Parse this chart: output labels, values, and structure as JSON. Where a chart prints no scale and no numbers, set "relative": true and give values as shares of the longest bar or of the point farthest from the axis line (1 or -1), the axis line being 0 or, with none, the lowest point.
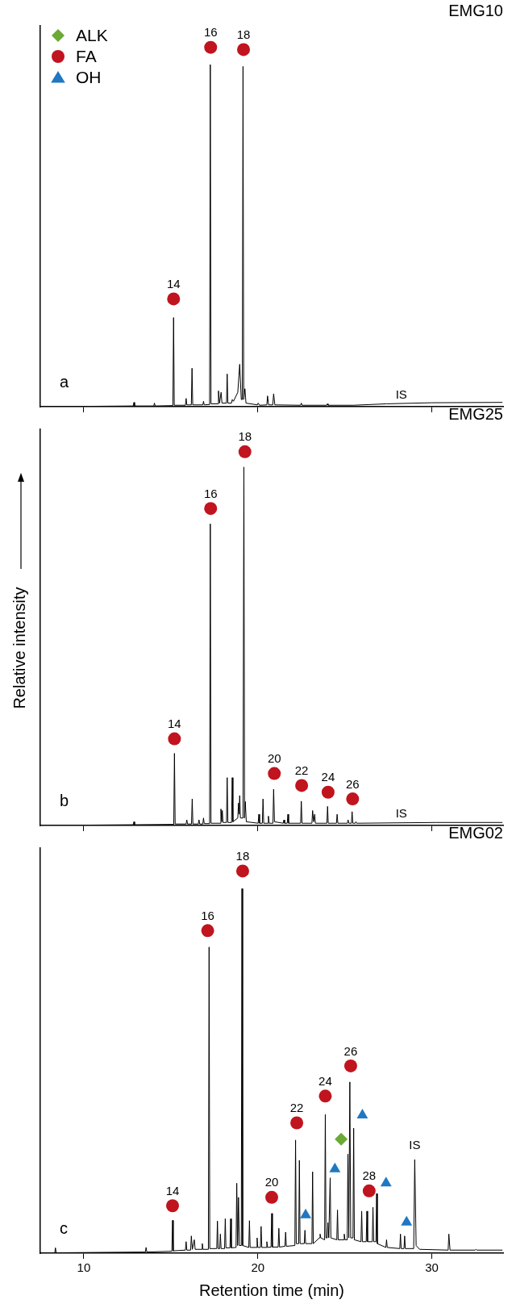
{
  "chart_data": [
    {
      "type": "line",
      "title": "EMG10",
      "relative": true,
      "xlim": [
        7.5,
        34.1
      ],
      "xticks": [
        10,
        20,
        30
      ],
      "tick_labels": false,
      "legend": "top left",
      "grid": false,
      "annotations": [
        "a",
        "IS",
        {
          "text": "14",
          "x": 15.16,
          "y": 0.3
        },
        {
          "text": "16",
          "x": 17.29,
          "y": 1
        },
        {
          "text": "18",
          "x": 19.18,
          "y": 0.994
        }
      ],
      "series": [
        {
          "color": "#000000",
          "marker": "none",
          "x": [
            7.5,
            12.84,
            12.88,
            12.92,
            14.02,
            14.06,
            14.1,
            15.12,
            15.16,
            15.2,
            15.84,
            15.88,
            15.92,
            16.18,
            16.22,
            16.26,
            16.84,
            16.88,
            16.92,
            17.23,
            17.27,
            17.31,
            17.7,
            17.74,
            17.8,
            17.89,
            17.94,
            18.2,
            18.24,
            18.28,
            18.49,
            18.53,
            18.6,
            18.85,
            18.96,
            19.05,
            19.11,
            19.15,
            19.19,
            19.26,
            19.32,
            19.98,
            20.02,
            20.1,
            20.52,
            20.56,
            20.62,
            20.86,
            20.91,
            20.98,
            22.46,
            22.5,
            22.54,
            23.96,
            24.0,
            24.04,
            25.5,
            27.4,
            30.0,
            34.06
          ],
          "values": [
            0,
            0.002,
            0.012,
            0.002,
            0.002,
            0.01,
            0.002,
            0.003,
            0.248,
            0.004,
            0.004,
            0.023,
            0.005,
            0.005,
            0.107,
            0.005,
            0.005,
            0.015,
            0.005,
            0.006,
            0.952,
            0.008,
            0.008,
            0.044,
            0.01,
            0.04,
            0.01,
            0.01,
            0.091,
            0.01,
            0.01,
            0.02,
            0.015,
            0.04,
            0.118,
            0.02,
            0.02,
            0.947,
            0.02,
            0.05,
            0.01,
            0.005,
            0.01,
            0.004,
            0.005,
            0.03,
            0.005,
            0.005,
            0.036,
            0.005,
            0.004,
            0.01,
            0.004,
            0.004,
            0.008,
            0.004,
            0.004,
            0.008,
            0.011,
            0.012
          ]
        },
        {
          "name": "ALK",
          "type": "scatter",
          "marker": "diamond",
          "color": "#6aaa35"
        },
        {
          "name": "FA",
          "type": "scatter",
          "marker": "circle",
          "color": "#c0141f",
          "x": [
            15.16,
            17.29,
            19.18
          ],
          "values": [
            0.3,
            1,
            0.994
          ]
        },
        {
          "name": "OH",
          "type": "scatter",
          "marker": "triangle",
          "color": "#1f78c1"
        }
      ]
    },
    {
      "type": "line",
      "title": "EMG25",
      "ylabel": "Relative intensity",
      "relative": true,
      "xlim": [
        7.5,
        34.1
      ],
      "xticks": [
        10,
        20,
        30
      ],
      "tick_labels": false,
      "grid": false,
      "annotations": [
        "b",
        "IS",
        {
          "text": "14",
          "x": 15.21,
          "y": 0.232
        },
        {
          "text": "16",
          "x": 17.29,
          "y": 0.848
        },
        {
          "text": "18",
          "x": 19.26,
          "y": 1
        },
        {
          "text": "20",
          "x": 20.95,
          "y": 0.139
        },
        {
          "text": "22",
          "x": 22.52,
          "y": 0.107
        },
        {
          "text": "24",
          "x": 24.04,
          "y": 0.089
        },
        {
          "text": "26",
          "x": 25.45,
          "y": 0.071
        }
      ],
      "series": [
        {
          "color": "#000000",
          "marker": "none",
          "x": [
            7.5,
            12.84,
            12.88,
            12.92,
            15.17,
            15.21,
            15.25,
            15.88,
            15.92,
            15.96,
            16.19,
            16.23,
            16.27,
            16.58,
            16.62,
            16.66,
            16.84,
            16.88,
            16.92,
            17.23,
            17.27,
            17.31,
            17.84,
            17.88,
            17.92,
            17.96,
            18.0,
            18.2,
            18.24,
            18.28,
            18.49,
            18.53,
            18.57,
            18.85,
            18.89,
            18.93,
            18.96,
            19.0,
            19.15,
            19.2,
            19.24,
            19.28,
            19.34,
            20.02,
            20.06,
            20.1,
            20.26,
            20.3,
            20.34,
            20.57,
            20.61,
            20.65,
            20.87,
            20.91,
            20.96,
            21.46,
            21.5,
            21.54,
            21.69,
            21.73,
            21.77,
            22.46,
            22.5,
            22.54,
            23.11,
            23.15,
            23.21,
            23.27,
            23.31,
            23.97,
            24.01,
            24.05,
            24.52,
            24.56,
            24.6,
            25.15,
            25.19,
            25.23,
            25.38,
            25.42,
            25.46,
            25.6,
            25.64,
            25.68,
            30.24,
            34.06
          ],
          "values": [
            0,
            0.002,
            0.01,
            0.002,
            0.003,
            0.193,
            0.004,
            0.004,
            0.015,
            0.004,
            0.004,
            0.071,
            0.004,
            0.004,
            0.015,
            0.004,
            0.004,
            0.02,
            0.005,
            0.005,
            0.807,
            0.006,
            0.006,
            0.044,
            0.01,
            0.04,
            0.008,
            0.008,
            0.128,
            0.008,
            0.008,
            0.128,
            0.01,
            0.02,
            0.06,
            0.03,
            0.08,
            0.02,
            0.02,
            0.959,
            0.02,
            0.064,
            0.01,
            0.006,
            0.03,
            0.006,
            0.006,
            0.071,
            0.006,
            0.006,
            0.025,
            0.006,
            0.006,
            0.097,
            0.01,
            0.006,
            0.015,
            0.006,
            0.006,
            0.03,
            0.006,
            0.006,
            0.065,
            0.006,
            0.006,
            0.04,
            0.01,
            0.03,
            0.006,
            0.006,
            0.051,
            0.006,
            0.006,
            0.03,
            0.006,
            0.006,
            0.015,
            0.006,
            0.006,
            0.037,
            0.006,
            0.006,
            0.01,
            0.006,
            0.008,
            0.008
          ]
        },
        {
          "type": "scatter",
          "marker": "circle",
          "color": "#c0141f",
          "x": [
            15.21,
            17.29,
            19.26,
            20.95,
            22.52,
            24.04,
            25.45
          ],
          "values": [
            0.232,
            0.848,
            1,
            0.139,
            0.107,
            0.089,
            0.071
          ]
        }
      ]
    },
    {
      "type": "line",
      "title": "EMG02",
      "xlabel": "Retention time (min)",
      "relative": true,
      "xlim": [
        7.5,
        34.1
      ],
      "xticks": [
        10,
        20,
        30
      ],
      "tick_labels": "x",
      "grid": false,
      "annotations": [
        "c",
        {
          "text": "IS",
          "x": 29.02,
          "y": 0.245
        },
        {
          "text": "14",
          "x": 15.1,
          "y": 0.124
        },
        {
          "text": "16",
          "x": 17.12,
          "y": 0.844
        },
        {
          "text": "18",
          "x": 19.13,
          "y": 1
        },
        {
          "text": "20",
          "x": 20.8,
          "y": 0.146
        },
        {
          "text": "22",
          "x": 22.24,
          "y": 0.341
        },
        {
          "text": "24",
          "x": 23.88,
          "y": 0.411
        },
        {
          "text": "26",
          "x": 25.34,
          "y": 0.49
        },
        {
          "text": "28",
          "x": 26.4,
          "y": 0.163
        }
      ],
      "series": [
        {
          "color": "#000000",
          "marker": "none",
          "x": [
            7.5,
            8.33,
            8.37,
            8.41,
            13.54,
            13.58,
            13.62,
            15.06,
            15.1,
            15.14,
            15.84,
            15.88,
            15.92,
            16.14,
            16.18,
            16.24,
            16.35,
            16.4,
            16.77,
            16.81,
            16.85,
            17.16,
            17.2,
            17.24,
            17.64,
            17.68,
            17.72,
            17.81,
            17.85,
            17.89,
            18.09,
            18.13,
            18.17,
            18.4,
            18.44,
            18.48,
            18.75,
            18.79,
            18.84,
            18.89,
            18.94,
            19.05,
            19.09,
            19.13,
            19.48,
            19.52,
            19.56,
            19.92,
            19.96,
            20.0,
            20.15,
            20.19,
            20.23,
            20.48,
            20.52,
            20.56,
            20.76,
            20.8,
            20.84,
            21.17,
            21.21,
            21.25,
            21.56,
            21.6,
            21.64,
            22.13,
            22.17,
            22.21,
            22.35,
            22.39,
            22.43,
            22.67,
            22.71,
            22.75,
            23.11,
            23.15,
            23.19,
            23.54,
            23.58,
            23.62,
            23.84,
            23.88,
            23.92,
            23.99,
            24.03,
            24.08,
            24.16,
            24.2,
            24.54,
            24.58,
            24.62,
            24.93,
            24.97,
            25.01,
            25.14,
            25.18,
            25.23,
            25.29,
            25.34,
            25.47,
            25.51,
            25.55,
            25.93,
            25.97,
            26.01,
            26.23,
            26.27,
            26.31,
            26.58,
            26.62,
            26.66,
            26.79,
            26.83,
            26.87,
            27.36,
            27.4,
            27.44,
            28.16,
            28.2,
            28.24,
            28.4,
            28.44,
            28.48,
            28.96,
            29.02,
            29.1,
            29.3,
            30.94,
            30.98,
            31.05,
            32.5,
            32.54,
            32.6,
            34.06
          ],
          "values": [
            0,
            0.001,
            0.014,
            0.001,
            0.003,
            0.015,
            0.003,
            0.005,
            0.086,
            0.006,
            0.008,
            0.03,
            0.008,
            0.008,
            0.045,
            0.01,
            0.035,
            0.01,
            0.01,
            0.025,
            0.01,
            0.01,
            0.801,
            0.012,
            0.012,
            0.084,
            0.012,
            0.012,
            0.05,
            0.012,
            0.012,
            0.09,
            0.014,
            0.014,
            0.09,
            0.014,
            0.015,
            0.183,
            0.02,
            0.146,
            0.02,
            0.02,
            0.954,
            0.02,
            0.015,
            0.085,
            0.015,
            0.015,
            0.04,
            0.015,
            0.015,
            0.07,
            0.015,
            0.015,
            0.03,
            0.015,
            0.016,
            0.104,
            0.016,
            0.016,
            0.065,
            0.016,
            0.018,
            0.055,
            0.018,
            0.02,
            0.296,
            0.025,
            0.025,
            0.243,
            0.025,
            0.025,
            0.06,
            0.025,
            0.025,
            0.213,
            0.025,
            0.04,
            0.05,
            0.04,
            0.035,
            0.363,
            0.04,
            0.04,
            0.08,
            0.04,
            0.197,
            0.04,
            0.035,
            0.113,
            0.035,
            0.035,
            0.05,
            0.035,
            0.035,
            0.259,
            0.04,
            0.448,
            0.04,
            0.04,
            0.327,
            0.035,
            0.03,
            0.11,
            0.03,
            0.03,
            0.11,
            0.03,
            0.03,
            0.12,
            0.03,
            0.03,
            0.156,
            0.025,
            0.015,
            0.035,
            0.015,
            0.012,
            0.05,
            0.012,
            0.012,
            0.045,
            0.012,
            0.012,
            0.245,
            0.02,
            0.01,
            0.008,
            0.05,
            0.008,
            0.008,
            0.01,
            0.008,
            0.008
          ]
        },
        {
          "type": "scatter",
          "marker": "diamond",
          "color": "#6aaa35",
          "x": [
            24.79
          ],
          "values": [
            0.298
          ]
        },
        {
          "type": "scatter",
          "marker": "circle",
          "color": "#c0141f",
          "x": [
            15.1,
            17.12,
            19.13,
            20.8,
            22.24,
            23.88,
            25.34,
            26.4
          ],
          "values": [
            0.124,
            0.844,
            1,
            0.146,
            0.341,
            0.411,
            0.49,
            0.163
          ]
        },
        {
          "type": "scatter",
          "marker": "triangle",
          "color": "#1f78c1",
          "x": [
            22.75,
            24.43,
            26.01,
            27.37,
            28.55
          ],
          "values": [
            0.1,
            0.22,
            0.361,
            0.183,
            0.081
          ]
        }
      ]
    }
  ]
}
